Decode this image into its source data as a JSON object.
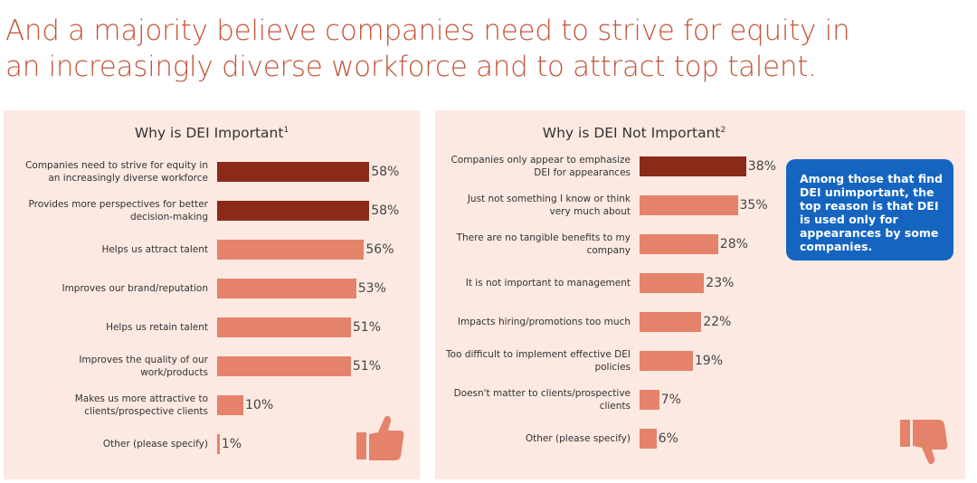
{
  "headline": {
    "line1": "And a majority believe companies need to strive for equity in",
    "line2": "an increasingly diverse workforce and to attract top talent."
  },
  "colors": {
    "dark_bar": "#8b2a18",
    "light_bar": "#e5826a",
    "panel_bg": "#fbe9e2",
    "callout_bg": "#1565c0",
    "headline": "#c4553a"
  },
  "callout": {
    "text": "Among those that find DEI unimportant, the top reason is that DEI is used only for appearances by some companies."
  },
  "chart_data": [
    {
      "type": "bar",
      "orientation": "horizontal",
      "title": "Why is DEI Important",
      "title_footnote": "1",
      "categories": [
        "Companies need to strive for equity in an increasingly diverse workforce",
        "Provides more perspectives for better decision-making",
        "Helps us attract talent",
        "Improves our brand/reputation",
        "Helps us retain talent",
        "Improves the quality of our work/products",
        "Makes us more attractive to clients/prospective clients",
        "Other (please specify)"
      ],
      "values": [
        58,
        58,
        56,
        53,
        51,
        51,
        10,
        1
      ],
      "value_labels": [
        "58%",
        "58%",
        "56%",
        "53%",
        "51%",
        "51%",
        "10%",
        "1%"
      ],
      "highlight": [
        true,
        true,
        false,
        false,
        false,
        false,
        false,
        false
      ],
      "icon": "thumbs-up-icon"
    },
    {
      "type": "bar",
      "orientation": "horizontal",
      "title": "Why is DEI Not Important",
      "title_footnote": "2",
      "categories": [
        "Companies only appear to emphasize DEI for appearances",
        "Just not something I know or think very much about",
        "There are no tangible benefits to my company",
        "It is not important to management",
        "Impacts hiring/promotions too much",
        "Too difficult to implement effective DEI policies",
        "Doesn't matter to clients/prospective clients",
        "Other (please specify)"
      ],
      "values": [
        38,
        35,
        28,
        23,
        22,
        19,
        7,
        6
      ],
      "value_labels": [
        "38%",
        "35%",
        "28%",
        "23%",
        "22%",
        "19%",
        "7%",
        "6%"
      ],
      "highlight": [
        true,
        false,
        false,
        false,
        false,
        false,
        false,
        false
      ],
      "icon": "thumbs-down-icon"
    }
  ]
}
